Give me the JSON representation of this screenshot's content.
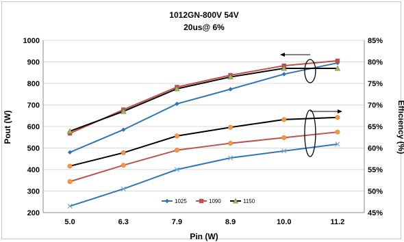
{
  "chart_data": {
    "type": "line",
    "title": "1012GN-800V 54V",
    "subtitle": "20us@ 6%",
    "xlabel": "Pin (W)",
    "ylabel": "Pout (W)",
    "y2label": "Efficiency (%)",
    "categories": [
      "5.0",
      "6.3",
      "7.9",
      "8.9",
      "10.0",
      "11.2"
    ],
    "ylim": [
      200,
      1000
    ],
    "yticks": [
      "200",
      "300",
      "400",
      "500",
      "600",
      "700",
      "800",
      "900",
      "1000"
    ],
    "y2lim": [
      45,
      85
    ],
    "y2ticks": [
      "45%",
      "50%",
      "55%",
      "60%",
      "65%",
      "70%",
      "75%",
      "80%",
      "85%"
    ],
    "grid": "horizontal",
    "legend_position": "bottom-center",
    "series": [
      {
        "name": "1025",
        "color": "#2e75b6",
        "marker": "diamond",
        "axis": "pout",
        "values": [
          480,
          585,
          705,
          773,
          843,
          895
        ]
      },
      {
        "name": "1090",
        "color": "#c0504d",
        "marker": "square",
        "axis": "pout",
        "values": [
          568,
          678,
          783,
          838,
          882,
          905
        ]
      },
      {
        "name": "1150",
        "color": "#000000",
        "marker": "triangle",
        "axis": "pout",
        "values": [
          578,
          670,
          775,
          830,
          870,
          870
        ]
      },
      {
        "name": "1025",
        "color": "#2e75b6",
        "marker": "x",
        "axis": "efficiency",
        "values": [
          46.5,
          50.5,
          55.0,
          57.7,
          59.3,
          60.9
        ]
      },
      {
        "name": "1090",
        "color": "#c0504d",
        "marker": "circle",
        "axis": "efficiency",
        "values": [
          52.2,
          56.0,
          59.5,
          61.1,
          62.4,
          63.7
        ]
      },
      {
        "name": "1150",
        "color": "#000000",
        "marker": "circle",
        "axis": "efficiency",
        "values": [
          55.8,
          58.9,
          62.8,
          64.8,
          66.6,
          67.1
        ]
      }
    ],
    "legend": [
      {
        "name": "1025",
        "color": "#2e75b6",
        "marker": "diamond"
      },
      {
        "name": "1090",
        "color": "#c0504d",
        "marker": "square"
      },
      {
        "name": "1150",
        "color": "#000000",
        "marker": "triangle"
      }
    ]
  }
}
